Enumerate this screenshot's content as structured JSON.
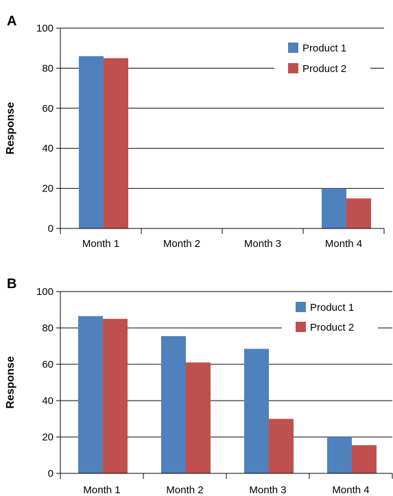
{
  "chart_data": [
    {
      "type": "bar",
      "panel": "A",
      "ylabel": "Response",
      "ylim": [
        0,
        100
      ],
      "yticks": [
        0,
        20,
        40,
        60,
        80,
        100
      ],
      "categories": [
        "Month 1",
        "Month 2",
        "Month 3",
        "Month 4"
      ],
      "series": [
        {
          "name": "Product 1",
          "color": "#4f81bd",
          "values": [
            86,
            0,
            0,
            20
          ]
        },
        {
          "name": "Product 2",
          "color": "#c0504d",
          "values": [
            85,
            0,
            0,
            15
          ]
        }
      ],
      "grid": true,
      "legend": "top-right"
    },
    {
      "type": "bar",
      "panel": "B",
      "ylabel": "Response",
      "ylim": [
        0,
        100
      ],
      "yticks": [
        0,
        20,
        40,
        60,
        80,
        100
      ],
      "categories": [
        "Month 1",
        "Month 2",
        "Month 3",
        "Month 4"
      ],
      "series": [
        {
          "name": "Product 1",
          "color": "#4f81bd",
          "values": [
            86.5,
            75.5,
            68.5,
            20
          ]
        },
        {
          "name": "Product 2",
          "color": "#c0504d",
          "values": [
            85,
            61,
            30,
            15.5
          ]
        }
      ],
      "grid": true,
      "legend": "top-right"
    }
  ]
}
